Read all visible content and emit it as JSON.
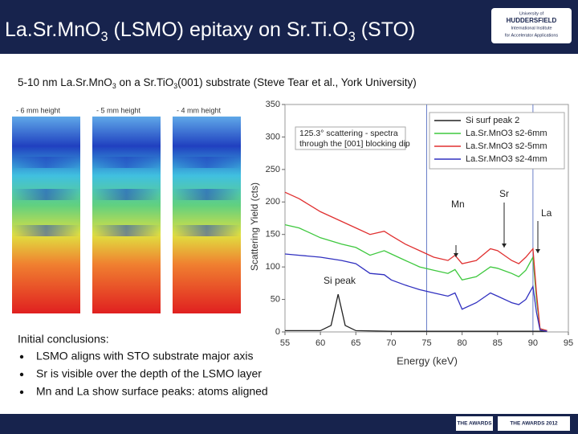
{
  "header": {
    "title": [
      "La.Sr.MnO",
      "3",
      " (LSMO) epitaxy on Sr.Ti.O",
      "3",
      " (STO)"
    ],
    "logo": [
      "University of",
      "HUDDERSFIELD",
      "International Institute",
      "for Accelerator Applications"
    ]
  },
  "subtitle": [
    "5-10 nm La.Sr.MnO",
    "3",
    " on a Sr.TiO",
    "3",
    "(001) substrate  (Steve Tear et al., York University)"
  ],
  "images": [
    {
      "label": "- 6 mm height"
    },
    {
      "label": "- 5 mm height"
    },
    {
      "label": "- 4 mm height"
    }
  ],
  "chart_data": {
    "type": "line",
    "xlabel": "Energy (keV)",
    "ylabel": "Scattering Yield (cts)",
    "xlim": [
      55,
      95
    ],
    "xticks": [
      55,
      60,
      65,
      70,
      75,
      80,
      85,
      90,
      95
    ],
    "ylim": [
      0,
      350
    ],
    "yticks": [
      0,
      50,
      100,
      150,
      200,
      250,
      300,
      350
    ],
    "annotations": [
      "125.3° scattering - spectra",
      "through the [001] blocking dip",
      "Mn",
      "Sr",
      "La",
      "Si peak"
    ],
    "legend": "upper right",
    "series": [
      {
        "name": "Si surf peak 2",
        "color": "#222222",
        "x": [
          55,
          60,
          61.5,
          62.5,
          63.5,
          65,
          70,
          80,
          92
        ],
        "values": [
          2,
          2,
          10,
          58,
          10,
          2,
          1,
          1,
          1
        ]
      },
      {
        "name": "La.Sr.MnO3 s2-6mm",
        "color": "#3ec83e",
        "x": [
          55,
          57,
          60,
          63,
          65,
          67,
          69,
          70,
          72,
          74,
          76,
          78,
          79,
          80,
          82,
          84,
          85,
          87,
          88,
          89,
          90,
          90.5,
          91,
          92
        ],
        "values": [
          165,
          160,
          145,
          135,
          130,
          118,
          125,
          120,
          110,
          100,
          95,
          90,
          96,
          80,
          85,
          100,
          98,
          90,
          85,
          95,
          115,
          50,
          5,
          2
        ]
      },
      {
        "name": "La.Sr.MnO3 s2-5mm",
        "color": "#e03030",
        "x": [
          55,
          57,
          60,
          63,
          65,
          67,
          69,
          70,
          72,
          74,
          76,
          78,
          79,
          80,
          82,
          84,
          85,
          87,
          88,
          89,
          90,
          90.5,
          91,
          92
        ],
        "values": [
          215,
          205,
          185,
          170,
          160,
          150,
          155,
          148,
          135,
          125,
          115,
          110,
          118,
          105,
          110,
          128,
          125,
          110,
          105,
          115,
          128,
          60,
          5,
          2
        ]
      },
      {
        "name": "La.Sr.MnO3 s2-4mm",
        "color": "#3030c0",
        "x": [
          55,
          57,
          60,
          63,
          65,
          67,
          69,
          70,
          72,
          74,
          76,
          78,
          79,
          80,
          82,
          84,
          85,
          87,
          88,
          89,
          90,
          90.5,
          91,
          92
        ],
        "values": [
          120,
          118,
          115,
          110,
          105,
          90,
          88,
          80,
          72,
          65,
          60,
          55,
          60,
          35,
          45,
          60,
          55,
          45,
          42,
          50,
          70,
          30,
          3,
          1
        ]
      }
    ]
  },
  "conclusions": {
    "heading": "Initial conclusions:",
    "bullets": [
      "LSMO aligns with STO substrate major axis",
      "Sr is visible over the depth of the LSMO layer",
      "Mn and La show surface peaks: atoms aligned"
    ]
  },
  "footer": {
    "awards": [
      "THE AWARDS",
      "THE AWARDS 2012"
    ]
  }
}
